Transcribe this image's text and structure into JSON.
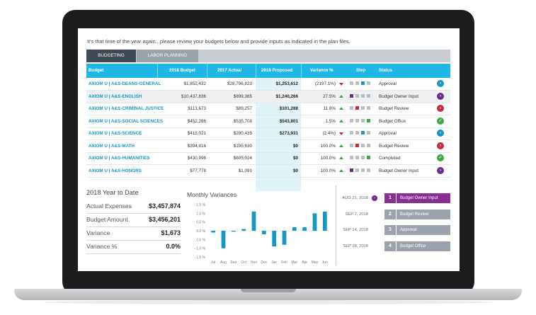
{
  "intro_text": "It's that time of the year again...please review your budgets below and provide inputs as indicated in the plan files.",
  "tabs": [
    {
      "label": "BUDGETING",
      "active": true
    },
    {
      "label": "LABOR PLANNING",
      "active": false
    }
  ],
  "table": {
    "headers": [
      "Budget",
      "2018 Budget",
      "2017 Actual",
      "2019 Proposed",
      "Variance %",
      "Step",
      "Status"
    ],
    "step_colors": {
      "done": "#6b2d8c",
      "review": "#c62a3c",
      "office": "#3aa845",
      "approval": "#1596c4",
      "pending": "#b9bec3"
    },
    "rows": [
      {
        "name": "AXIOM U | A&S-DEANS-GENERAL",
        "budget_2018": "$1,852,432",
        "actual_2017": "$28,796,823",
        "proposed_2019": "$1,253,612",
        "variance": "(2197.1%)",
        "trend": "down",
        "steps": [
          "pending",
          "pending",
          "approval",
          "pending"
        ],
        "status": "Approval",
        "status_color": "#1596c4",
        "status_icon": "chevron-right"
      },
      {
        "name": "AXIOM U | A&S-ENGLISH",
        "budget_2018": "$10,437,836",
        "actual_2017": "$899,365",
        "proposed_2019": "$1,240,266",
        "variance": "27.5%",
        "trend": "up",
        "steps": [
          "done",
          "pending",
          "pending",
          "pending"
        ],
        "status": "Budget Owner Input",
        "status_color": "#6b2d8c",
        "status_icon": "chevron-right",
        "highlight": true
      },
      {
        "name": "AXIOM U | A&S-CRIMINAL JUSTICE",
        "budget_2018": "$113,673",
        "actual_2017": "$89,257",
        "proposed_2019": "$101,288",
        "variance": "11.9%",
        "trend": "up",
        "steps": [
          "pending",
          "review",
          "pending",
          "pending"
        ],
        "status": "Budget Review",
        "status_color": "#c62a3c",
        "status_icon": "chevron-right"
      },
      {
        "name": "AXIOM U | A&S-SOCIAL SCIENCES",
        "budget_2018": "$452,286",
        "actual_2017": "$535,708",
        "proposed_2019": "$543,801",
        "variance": "1.5%",
        "trend": "up",
        "steps": [
          "pending",
          "pending",
          "pending",
          "office"
        ],
        "status": "Budget Office",
        "status_color": "#3aa845",
        "status_icon": "check"
      },
      {
        "name": "AXIOM U | A&S-SCIENCE",
        "budget_2018": "$415,021",
        "actual_2017": "$280,435",
        "proposed_2019": "$273,931",
        "variance": "(2.4%)",
        "trend": "down",
        "steps": [
          "pending",
          "pending",
          "approval",
          "pending"
        ],
        "status": "Approval",
        "status_color": "#1596c4",
        "status_icon": "chevron-right"
      },
      {
        "name": "AXIOM U | A&S-MATH",
        "budget_2018": "$394,816",
        "actual_2017": "$195,630",
        "proposed_2019": "$0",
        "variance": "100.0%",
        "trend": "up",
        "steps": [
          "pending",
          "review",
          "pending",
          "pending"
        ],
        "status": "Budget Review",
        "status_color": "#c62a3c",
        "status_icon": "chevron-right"
      },
      {
        "name": "AXIOM U | A&S-HUMANITIES",
        "budget_2018": "$430,996",
        "actual_2017": "$605,024",
        "proposed_2019": "$0",
        "variance": "100.0%",
        "trend": "up",
        "steps": [
          "pending",
          "pending",
          "pending",
          "office"
        ],
        "status": "Completed",
        "status_color": "#3aa845",
        "status_icon": "check"
      },
      {
        "name": "AXIOM U | A&S-HONORS",
        "budget_2018": "$77,778",
        "actual_2017": "$1,091",
        "proposed_2019": "$0",
        "variance": "100.0%",
        "trend": "up",
        "steps": [
          "done",
          "pending",
          "pending",
          "pending"
        ],
        "status": "Budget Owner Input",
        "status_color": "#6b2d8c",
        "status_icon": "chevron-right"
      }
    ]
  },
  "ytd": {
    "title": "2018 Year to Date",
    "items": [
      {
        "label": "Actual Expenses",
        "value": "$3,457,874"
      },
      {
        "label": "Budget Amount",
        "value": "$3,456,201"
      },
      {
        "label": "Variance",
        "value": "$1,673"
      },
      {
        "label": "Variance %",
        "value": "0.0%"
      }
    ]
  },
  "chart_data": {
    "type": "bar",
    "title": "Monthly Variances",
    "categories": [
      "Jul",
      "Aug",
      "Sep",
      "Oct",
      "Nov",
      "Dec",
      "Jan",
      "Feb",
      "Mar",
      "Apr",
      "May",
      "Jun"
    ],
    "values": [
      -0.1,
      -1.0,
      -0.05,
      0.1,
      1.1,
      -0.2,
      -0.9,
      -0.8,
      0.2,
      0.2,
      1.0,
      1.1
    ],
    "ylim": [
      -1.5,
      1.5
    ],
    "yticks": [
      "1.5 %",
      "1.0 %",
      "0.5 %",
      "0.0 %",
      "- 0.5 %",
      "- 1.0 %",
      "- 1.5 %"
    ],
    "bar_color": "#1596c4",
    "xlabel": "",
    "ylabel": ""
  },
  "timeline": [
    {
      "date": "AUG 31, 2018",
      "num": "1",
      "label": "Budget Owner Input",
      "color": "#8b2f97",
      "current": true
    },
    {
      "date": "SEP 7, 2018",
      "num": "2",
      "label": "Budget Review",
      "color": "#9aa3ab",
      "current": false
    },
    {
      "date": "SEP 14, 2018",
      "num": "3",
      "label": "Approval",
      "color": "#9aa3ab",
      "current": false
    },
    {
      "date": "SEP 28, 2018",
      "num": "4",
      "label": "Budget Office",
      "color": "#9aa3ab",
      "current": false
    }
  ]
}
